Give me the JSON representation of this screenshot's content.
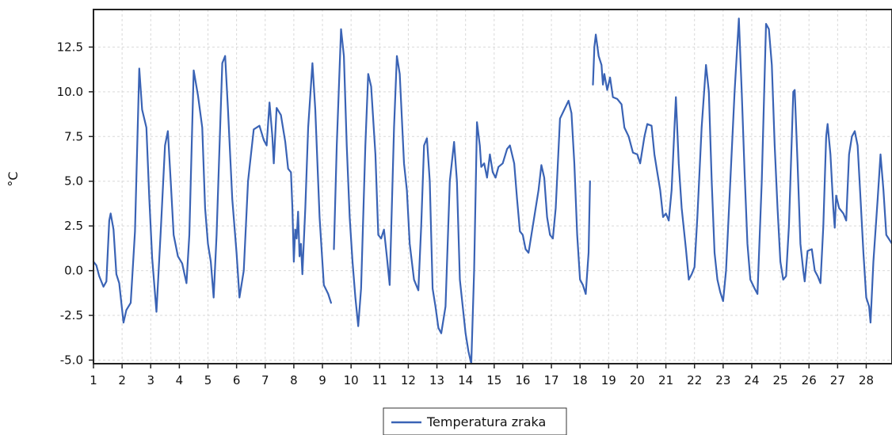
{
  "chart_data": {
    "type": "line",
    "title": "",
    "xlabel": "",
    "ylabel": "°C",
    "xlim": [
      1,
      28.9
    ],
    "ylim": [
      -5.2,
      14.6
    ],
    "x_ticks": [
      1,
      2,
      3,
      4,
      5,
      6,
      7,
      8,
      9,
      10,
      11,
      12,
      13,
      14,
      15,
      16,
      17,
      18,
      19,
      20,
      21,
      22,
      23,
      24,
      25,
      26,
      27,
      28
    ],
    "x_tick_labels": [
      "1",
      "2",
      "3",
      "4",
      "5",
      "6",
      "7",
      "8",
      "9",
      "10",
      "11",
      "12",
      "13",
      "14",
      "15",
      "16",
      "17",
      "18",
      "19",
      "20",
      "21",
      "22",
      "23",
      "24",
      "25",
      "26",
      "27",
      "28"
    ],
    "y_ticks": [
      -5.0,
      -2.5,
      0.0,
      2.5,
      5.0,
      7.5,
      10.0,
      12.5
    ],
    "y_tick_labels": [
      "-5.0",
      "-2.5",
      "0.0",
      "2.5",
      "5.0",
      "7.5",
      "10.0",
      "12.5"
    ],
    "grid": true,
    "legend_position": "bottom-center",
    "colors": {
      "series": "#3a63b5",
      "grid": "#d9d9d9",
      "axis": "#222222"
    },
    "series": [
      {
        "name": "Temperatura zraka",
        "segments": [
          [
            [
              1.0,
              0.5
            ],
            [
              1.1,
              0.3
            ],
            [
              1.2,
              -0.3
            ],
            [
              1.35,
              -0.9
            ],
            [
              1.45,
              -0.6
            ],
            [
              1.55,
              2.8
            ],
            [
              1.6,
              3.2
            ],
            [
              1.7,
              2.3
            ],
            [
              1.8,
              -0.2
            ],
            [
              1.9,
              -0.7
            ],
            [
              2.05,
              -2.9
            ],
            [
              2.15,
              -2.2
            ],
            [
              2.3,
              -1.8
            ],
            [
              2.45,
              2.2
            ],
            [
              2.6,
              11.3
            ],
            [
              2.7,
              9.0
            ],
            [
              2.85,
              8.0
            ],
            [
              2.95,
              4.0
            ],
            [
              3.05,
              0.7
            ],
            [
              3.2,
              -2.3
            ],
            [
              3.35,
              2.2
            ],
            [
              3.5,
              7.0
            ],
            [
              3.6,
              7.8
            ],
            [
              3.7,
              5.0
            ],
            [
              3.8,
              2.0
            ],
            [
              3.95,
              0.8
            ],
            [
              4.1,
              0.4
            ],
            [
              4.25,
              -0.7
            ],
            [
              4.35,
              2.0
            ],
            [
              4.5,
              11.2
            ],
            [
              4.65,
              9.8
            ],
            [
              4.8,
              8.0
            ],
            [
              4.9,
              3.5
            ],
            [
              5.0,
              1.5
            ],
            [
              5.1,
              0.5
            ],
            [
              5.2,
              -1.5
            ],
            [
              5.3,
              2.0
            ],
            [
              5.5,
              11.6
            ],
            [
              5.6,
              12.0
            ],
            [
              5.7,
              9.0
            ],
            [
              5.85,
              4.0
            ],
            [
              6.0,
              1.0
            ],
            [
              6.1,
              -1.5
            ],
            [
              6.25,
              0.0
            ],
            [
              6.4,
              5.0
            ],
            [
              6.6,
              7.9
            ],
            [
              6.8,
              8.1
            ],
            [
              6.95,
              7.3
            ],
            [
              7.05,
              7.0
            ],
            [
              7.15,
              9.4
            ],
            [
              7.25,
              7.5
            ],
            [
              7.3,
              6.0
            ],
            [
              7.4,
              9.1
            ],
            [
              7.55,
              8.7
            ],
            [
              7.7,
              7.2
            ],
            [
              7.8,
              5.7
            ],
            [
              7.9,
              5.5
            ],
            [
              7.95,
              3.5
            ],
            [
              8.0,
              0.5
            ],
            [
              8.05,
              2.3
            ],
            [
              8.1,
              1.8
            ],
            [
              8.15,
              3.3
            ],
            [
              8.2,
              0.8
            ],
            [
              8.25,
              1.5
            ],
            [
              8.3,
              -0.2
            ],
            [
              8.4,
              3.5
            ],
            [
              8.5,
              8.0
            ],
            [
              8.65,
              11.6
            ],
            [
              8.75,
              9.0
            ],
            [
              8.9,
              3.0
            ],
            [
              9.05,
              -0.8
            ],
            [
              9.2,
              -1.3
            ],
            [
              9.3,
              -1.8
            ]
          ],
          [
            [
              9.4,
              1.2
            ],
            [
              9.5,
              7.0
            ],
            [
              9.65,
              13.5
            ],
            [
              9.75,
              12.0
            ],
            [
              9.85,
              7.0
            ],
            [
              9.95,
              3.0
            ],
            [
              10.05,
              0.5
            ],
            [
              10.15,
              -1.5
            ],
            [
              10.25,
              -3.1
            ],
            [
              10.35,
              -1.0
            ],
            [
              10.5,
              7.0
            ],
            [
              10.6,
              11.0
            ],
            [
              10.7,
              10.3
            ],
            [
              10.85,
              6.5
            ],
            [
              10.95,
              2.0
            ],
            [
              11.05,
              1.8
            ],
            [
              11.15,
              2.3
            ],
            [
              11.25,
              0.8
            ],
            [
              11.35,
              -0.8
            ],
            [
              11.5,
              8.0
            ],
            [
              11.6,
              12.0
            ],
            [
              11.7,
              11.0
            ],
            [
              11.85,
              6.0
            ],
            [
              11.95,
              4.5
            ],
            [
              12.05,
              1.5
            ],
            [
              12.2,
              -0.5
            ],
            [
              12.35,
              -1.1
            ],
            [
              12.45,
              2.5
            ],
            [
              12.55,
              7.0
            ],
            [
              12.65,
              7.4
            ],
            [
              12.75,
              5.0
            ],
            [
              12.85,
              -1.0
            ],
            [
              12.95,
              -2.0
            ],
            [
              13.05,
              -3.2
            ],
            [
              13.15,
              -3.5
            ],
            [
              13.3,
              -2.0
            ],
            [
              13.45,
              5.0
            ],
            [
              13.6,
              7.2
            ],
            [
              13.7,
              5.0
            ],
            [
              13.8,
              -0.5
            ],
            [
              13.9,
              -2.0
            ],
            [
              14.0,
              -3.5
            ],
            [
              14.1,
              -4.5
            ],
            [
              14.2,
              -5.2
            ],
            [
              14.3,
              0.0
            ],
            [
              14.4,
              8.3
            ],
            [
              14.5,
              7.0
            ],
            [
              14.55,
              5.8
            ],
            [
              14.65,
              6.0
            ],
            [
              14.75,
              5.2
            ],
            [
              14.85,
              6.5
            ],
            [
              14.95,
              5.5
            ],
            [
              15.05,
              5.2
            ],
            [
              15.15,
              5.8
            ],
            [
              15.3,
              6.0
            ],
            [
              15.45,
              6.8
            ],
            [
              15.55,
              7.0
            ],
            [
              15.7,
              6.0
            ],
            [
              15.8,
              4.0
            ],
            [
              15.9,
              2.2
            ],
            [
              16.0,
              2.0
            ],
            [
              16.1,
              1.2
            ],
            [
              16.2,
              1.0
            ],
            [
              16.3,
              2.0
            ],
            [
              16.45,
              3.5
            ],
            [
              16.55,
              4.5
            ],
            [
              16.65,
              5.9
            ],
            [
              16.75,
              5.2
            ],
            [
              16.85,
              3.0
            ],
            [
              16.95,
              2.0
            ],
            [
              17.05,
              1.8
            ],
            [
              17.15,
              3.5
            ],
            [
              17.3,
              8.5
            ],
            [
              17.45,
              9.0
            ],
            [
              17.6,
              9.5
            ],
            [
              17.7,
              8.8
            ],
            [
              17.8,
              6.0
            ],
            [
              17.9,
              2.0
            ],
            [
              18.0,
              -0.5
            ],
            [
              18.1,
              -0.8
            ],
            [
              18.2,
              -1.3
            ],
            [
              18.3,
              1.0
            ],
            [
              18.35,
              5.0
            ]
          ],
          [
            [
              18.45,
              10.4
            ],
            [
              18.5,
              12.5
            ],
            [
              18.55,
              13.2
            ],
            [
              18.65,
              12.0
            ],
            [
              18.75,
              11.5
            ],
            [
              18.8,
              10.4
            ],
            [
              18.85,
              11.0
            ],
            [
              18.95,
              10.1
            ],
            [
              19.05,
              10.8
            ],
            [
              19.15,
              9.7
            ],
            [
              19.3,
              9.6
            ],
            [
              19.45,
              9.3
            ],
            [
              19.55,
              8.0
            ],
            [
              19.7,
              7.5
            ],
            [
              19.85,
              6.6
            ],
            [
              20.0,
              6.5
            ],
            [
              20.1,
              6.0
            ],
            [
              20.25,
              7.5
            ],
            [
              20.35,
              8.2
            ],
            [
              20.5,
              8.1
            ],
            [
              20.6,
              6.5
            ],
            [
              20.7,
              5.5
            ],
            [
              20.8,
              4.5
            ],
            [
              20.9,
              3.0
            ],
            [
              21.0,
              3.2
            ],
            [
              21.1,
              2.8
            ],
            [
              21.2,
              4.5
            ],
            [
              21.3,
              8.0
            ],
            [
              21.35,
              9.7
            ],
            [
              21.45,
              6.0
            ],
            [
              21.55,
              3.5
            ],
            [
              21.7,
              1.2
            ],
            [
              21.8,
              -0.5
            ],
            [
              21.9,
              -0.2
            ],
            [
              22.0,
              0.2
            ],
            [
              22.1,
              3.0
            ],
            [
              22.25,
              8.0
            ],
            [
              22.4,
              11.5
            ],
            [
              22.5,
              10.0
            ],
            [
              22.6,
              5.0
            ],
            [
              22.7,
              1.0
            ],
            [
              22.8,
              -0.5
            ],
            [
              22.9,
              -1.2
            ],
            [
              23.0,
              -1.7
            ],
            [
              23.1,
              0.0
            ],
            [
              23.25,
              5.0
            ],
            [
              23.4,
              10.0
            ],
            [
              23.55,
              14.1
            ],
            [
              23.65,
              10.0
            ],
            [
              23.75,
              5.5
            ],
            [
              23.85,
              1.5
            ],
            [
              23.95,
              -0.5
            ],
            [
              24.1,
              -1.0
            ],
            [
              24.2,
              -1.3
            ],
            [
              24.35,
              5.0
            ],
            [
              24.5,
              13.8
            ],
            [
              24.6,
              13.5
            ],
            [
              24.7,
              11.5
            ],
            [
              24.8,
              7.0
            ],
            [
              24.9,
              3.5
            ],
            [
              25.0,
              0.5
            ],
            [
              25.1,
              -0.5
            ],
            [
              25.2,
              -0.3
            ],
            [
              25.3,
              2.5
            ],
            [
              25.45,
              10.0
            ],
            [
              25.5,
              10.1
            ],
            [
              25.6,
              6.0
            ],
            [
              25.7,
              1.5
            ],
            [
              25.8,
              0.0
            ],
            [
              25.85,
              -0.6
            ],
            [
              25.95,
              1.1
            ],
            [
              26.1,
              1.2
            ],
            [
              26.2,
              0.0
            ],
            [
              26.3,
              -0.3
            ],
            [
              26.4,
              -0.7
            ],
            [
              26.5,
              2.5
            ],
            [
              26.6,
              7.5
            ],
            [
              26.65,
              8.2
            ],
            [
              26.75,
              6.5
            ],
            [
              26.85,
              3.5
            ],
            [
              26.9,
              2.4
            ],
            [
              26.95,
              4.2
            ],
            [
              27.05,
              3.5
            ],
            [
              27.2,
              3.2
            ],
            [
              27.3,
              2.8
            ],
            [
              27.4,
              6.5
            ],
            [
              27.5,
              7.5
            ],
            [
              27.6,
              7.8
            ],
            [
              27.7,
              7.0
            ],
            [
              27.8,
              4.0
            ],
            [
              27.9,
              1.0
            ],
            [
              28.0,
              -1.5
            ],
            [
              28.1,
              -2.0
            ],
            [
              28.15,
              -2.9
            ],
            [
              28.25,
              0.5
            ],
            [
              28.4,
              4.0
            ],
            [
              28.5,
              6.5
            ],
            [
              28.6,
              4.5
            ],
            [
              28.7,
              2.0
            ],
            [
              28.9,
              1.5
            ]
          ]
        ]
      }
    ]
  },
  "legend": {
    "label": "Temperatura zraka"
  }
}
